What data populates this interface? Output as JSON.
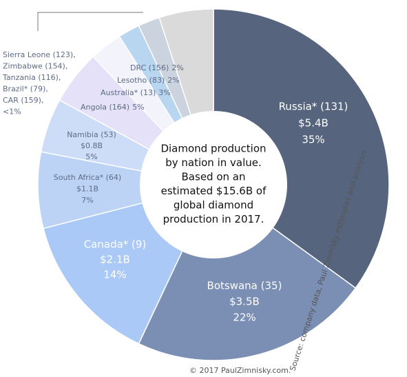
{
  "chart_data": {
    "type": "donut",
    "center_text": [
      "Diamond production",
      "by nation in value.",
      "Based on an",
      "estimated $15.6B of",
      "global diamond",
      "production in 2017."
    ],
    "categories": [
      "Russia* (131)",
      "Botswana (35)",
      "Canada* (9)",
      "South Africa* (64)",
      "Namibia (53)",
      "Angola (164)",
      "Australia* (13)",
      "Lesotho (83)",
      "DRC (156)",
      null
    ],
    "amounts": [
      "$5.4B",
      "$3.5B",
      "$2.1B",
      "$1.1B",
      "$0.8B",
      null,
      null,
      null,
      null,
      null
    ],
    "values": [
      35,
      22,
      14,
      7,
      5,
      5,
      3,
      2,
      2,
      5
    ],
    "value_labels": [
      "35%",
      "22%",
      "14%",
      "7%",
      "5%",
      "5%",
      "3%",
      "2%",
      "2%",
      null
    ],
    "colors": [
      "#56647e",
      "#7b8eb4",
      "#abc9f6",
      "#bcd3f5",
      "#cddcf7",
      "#e4e1f8",
      "#f3f3fc",
      "#b8d6ef",
      "#cbd3df",
      "#dadada"
    ],
    "others_label": [
      "Sierra Leone (123),",
      "Zimbabwe (154),",
      "Tanzania (116),",
      "Brazil* (79),",
      "CAR (159),",
      "<1%"
    ],
    "copyright": "© 2017 PaulZimnisky.com.",
    "source": "Source: company data, Paul Zimnisky estimates and analysis"
  }
}
